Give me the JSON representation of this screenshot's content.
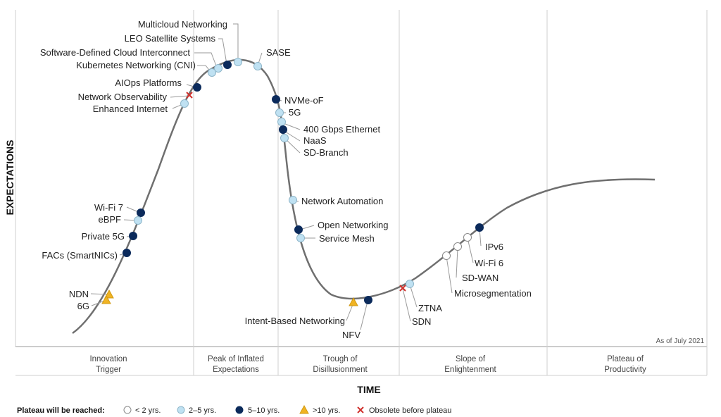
{
  "axes": {
    "y_title": "EXPECTATIONS",
    "x_title": "TIME"
  },
  "as_of": "As of July 2021",
  "phases": [
    {
      "line1": "Innovation",
      "line2": "Trigger"
    },
    {
      "line1": "Peak of Inflated",
      "line2": "Expectations"
    },
    {
      "line1": "Trough of",
      "line2": "Disillusionment"
    },
    {
      "line1": "Slope of",
      "line2": "Enlightenment"
    },
    {
      "line1": "Plateau of",
      "line2": "Productivity"
    }
  ],
  "legend": {
    "title": "Plateau will be reached:",
    "items": [
      {
        "key": "lt2",
        "label": "< 2 yrs."
      },
      {
        "key": "2to5",
        "label": "2–5 yrs."
      },
      {
        "key": "5to10",
        "label": "5–10 yrs."
      },
      {
        "key": "gt10",
        "label": ">10 yrs."
      },
      {
        "key": "obsolete",
        "label": "Obsolete before plateau"
      }
    ]
  },
  "colors": {
    "lt2": "#ffffff",
    "2to5": "#bfe1f2",
    "5to10": "#0b2a5b",
    "gt10": "#f0b323",
    "obsolete": "#d0312d",
    "curve": "#6f6f6f",
    "grid": "#cfcfcf"
  },
  "technologies": [
    {
      "name": "Multicloud Networking",
      "category": "2to5"
    },
    {
      "name": "LEO Satellite Systems",
      "category": "5to10"
    },
    {
      "name": "Software-Defined Cloud Interconnect",
      "category": "2to5"
    },
    {
      "name": "Kubernetes Networking (CNI)",
      "category": "2to5"
    },
    {
      "name": "SASE",
      "category": "2to5"
    },
    {
      "name": "AIOps Platforms",
      "category": "5to10"
    },
    {
      "name": "Network Observability",
      "category": "obsolete"
    },
    {
      "name": "Enhanced Internet",
      "category": "2to5"
    },
    {
      "name": "NVMe-oF",
      "category": "5to10"
    },
    {
      "name": "5G",
      "category": "2to5"
    },
    {
      "name": "400 Gbps Ethernet",
      "category": "2to5"
    },
    {
      "name": "NaaS",
      "category": "5to10"
    },
    {
      "name": "SD-Branch",
      "category": "2to5"
    },
    {
      "name": "Network Automation",
      "category": "2to5"
    },
    {
      "name": "Open Networking",
      "category": "5to10"
    },
    {
      "name": "Service Mesh",
      "category": "2to5"
    },
    {
      "name": "Wi-Fi 7",
      "category": "5to10"
    },
    {
      "name": "eBPF",
      "category": "2to5"
    },
    {
      "name": "Private 5G",
      "category": "5to10"
    },
    {
      "name": "FACs (SmartNICs)",
      "category": "5to10"
    },
    {
      "name": "NDN",
      "category": "gt10"
    },
    {
      "name": "6G",
      "category": "gt10"
    },
    {
      "name": "Intent-Based Networking",
      "category": "gt10"
    },
    {
      "name": "NFV",
      "category": "5to10"
    },
    {
      "name": "ZTNA",
      "category": "2to5"
    },
    {
      "name": "SDN",
      "category": "obsolete"
    },
    {
      "name": "IPv6",
      "category": "5to10"
    },
    {
      "name": "Wi-Fi 6",
      "category": "lt2"
    },
    {
      "name": "SD-WAN",
      "category": "lt2"
    },
    {
      "name": "Microsegmentation",
      "category": "lt2"
    }
  ]
}
